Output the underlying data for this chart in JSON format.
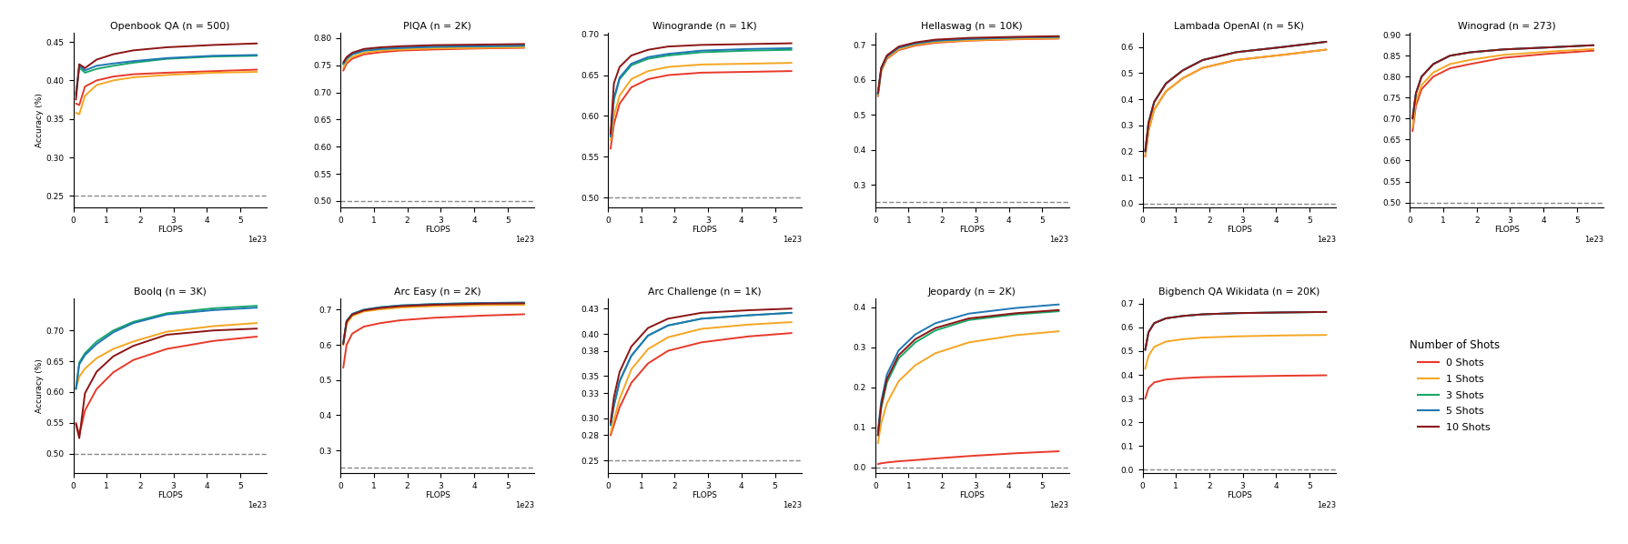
{
  "colors": {
    "0": "#e8392a",
    "1": "#f5a623",
    "3": "#17a868",
    "5": "#1f77b4",
    "10": "#8b1515"
  },
  "shot_labels": [
    "0 Shots",
    "1 Shots",
    "3 Shots",
    "5 Shots",
    "10 Shots"
  ],
  "shot_keys": [
    "0",
    "1",
    "3",
    "5",
    "10"
  ],
  "flops": [
    8e+21,
    1.8e+22,
    3.5e+22,
    7e+22,
    1.2e+23,
    1.8e+23,
    2.8e+23,
    4.2e+23,
    5.5e+23
  ],
  "subplots": [
    {
      "title": "Openbook QA (n = 500)",
      "baseline": 0.25,
      "ylim": [
        0.235,
        0.462
      ],
      "yticks": [
        0.25,
        0.3,
        0.35,
        0.4,
        0.45
      ],
      "ylabel": true,
      "row": 0,
      "col": 0,
      "data": {
        "0": [
          0.37,
          0.368,
          0.392,
          0.4,
          0.405,
          0.408,
          0.41,
          0.412,
          0.414
        ],
        "1": [
          0.358,
          0.356,
          0.38,
          0.394,
          0.4,
          0.404,
          0.407,
          0.41,
          0.411
        ],
        "3": [
          0.383,
          0.417,
          0.41,
          0.415,
          0.419,
          0.423,
          0.428,
          0.431,
          0.432
        ],
        "5": [
          0.381,
          0.42,
          0.413,
          0.419,
          0.422,
          0.425,
          0.429,
          0.432,
          0.433
        ],
        "10": [
          0.375,
          0.421,
          0.416,
          0.427,
          0.434,
          0.439,
          0.443,
          0.446,
          0.448
        ]
      }
    },
    {
      "title": "PIQA (n = 2K)",
      "baseline": 0.5,
      "ylim": [
        0.488,
        0.81
      ],
      "yticks": [
        0.5,
        0.55,
        0.6,
        0.65,
        0.7,
        0.75,
        0.8
      ],
      "ylabel": false,
      "row": 0,
      "col": 1,
      "data": {
        "0": [
          0.74,
          0.753,
          0.762,
          0.77,
          0.774,
          0.777,
          0.779,
          0.781,
          0.782
        ],
        "1": [
          0.745,
          0.757,
          0.765,
          0.773,
          0.777,
          0.779,
          0.781,
          0.782,
          0.783
        ],
        "3": [
          0.752,
          0.762,
          0.77,
          0.777,
          0.78,
          0.782,
          0.784,
          0.785,
          0.786
        ],
        "5": [
          0.752,
          0.762,
          0.77,
          0.777,
          0.78,
          0.782,
          0.784,
          0.785,
          0.786
        ],
        "10": [
          0.755,
          0.765,
          0.773,
          0.78,
          0.783,
          0.785,
          0.787,
          0.788,
          0.789
        ]
      }
    },
    {
      "title": "Winogrande (n = 1K)",
      "baseline": 0.5,
      "ylim": [
        0.488,
        0.702
      ],
      "yticks": [
        0.5,
        0.55,
        0.6,
        0.65,
        0.7
      ],
      "ylabel": false,
      "row": 0,
      "col": 2,
      "data": {
        "0": [
          0.56,
          0.59,
          0.615,
          0.635,
          0.645,
          0.65,
          0.653,
          0.654,
          0.655
        ],
        "1": [
          0.57,
          0.6,
          0.625,
          0.645,
          0.655,
          0.66,
          0.663,
          0.664,
          0.665
        ],
        "3": [
          0.575,
          0.62,
          0.645,
          0.662,
          0.67,
          0.674,
          0.678,
          0.68,
          0.681
        ],
        "5": [
          0.575,
          0.622,
          0.647,
          0.664,
          0.672,
          0.676,
          0.68,
          0.682,
          0.683
        ],
        "10": [
          0.578,
          0.64,
          0.66,
          0.674,
          0.681,
          0.685,
          0.687,
          0.688,
          0.689
        ]
      }
    },
    {
      "title": "Hellaswag (n = 10K)",
      "baseline": 0.25,
      "ylim": [
        0.235,
        0.735
      ],
      "yticks": [
        0.3,
        0.4,
        0.5,
        0.6,
        0.7
      ],
      "ylabel": false,
      "row": 0,
      "col": 3,
      "data": {
        "0": [
          0.553,
          0.625,
          0.66,
          0.685,
          0.698,
          0.706,
          0.712,
          0.716,
          0.718
        ],
        "1": [
          0.556,
          0.627,
          0.662,
          0.687,
          0.7,
          0.708,
          0.713,
          0.717,
          0.719
        ],
        "3": [
          0.56,
          0.632,
          0.667,
          0.692,
          0.704,
          0.712,
          0.717,
          0.721,
          0.723
        ],
        "5": [
          0.56,
          0.632,
          0.667,
          0.692,
          0.704,
          0.712,
          0.717,
          0.721,
          0.723
        ],
        "10": [
          0.562,
          0.635,
          0.67,
          0.695,
          0.707,
          0.715,
          0.72,
          0.723,
          0.725
        ]
      }
    },
    {
      "title": "Lambada OpenAI (n = 5K)",
      "baseline": 0.0,
      "ylim": [
        -0.015,
        0.655
      ],
      "yticks": [
        0.0,
        0.1,
        0.2,
        0.3,
        0.4,
        0.5,
        0.6
      ],
      "ylabel": false,
      "row": 0,
      "col": 4,
      "data": {
        "0": [
          0.18,
          0.28,
          0.36,
          0.43,
          0.48,
          0.52,
          0.55,
          0.57,
          0.59
        ],
        "1": [
          0.18,
          0.28,
          0.36,
          0.43,
          0.48,
          0.52,
          0.55,
          0.57,
          0.59
        ],
        "3": [
          0.2,
          0.31,
          0.39,
          0.46,
          0.51,
          0.55,
          0.58,
          0.6,
          0.62
        ],
        "5": [
          0.2,
          0.31,
          0.39,
          0.46,
          0.51,
          0.55,
          0.58,
          0.6,
          0.62
        ],
        "10": [
          0.2,
          0.31,
          0.39,
          0.46,
          0.51,
          0.55,
          0.58,
          0.6,
          0.62
        ]
      }
    },
    {
      "title": "Winograd (n = 273)",
      "baseline": 0.5,
      "ylim": [
        0.488,
        0.905
      ],
      "yticks": [
        0.5,
        0.55,
        0.6,
        0.65,
        0.7,
        0.75,
        0.8,
        0.85,
        0.9
      ],
      "ylabel": false,
      "row": 0,
      "col": 5,
      "data": {
        "0": [
          0.67,
          0.73,
          0.77,
          0.8,
          0.82,
          0.83,
          0.845,
          0.855,
          0.862
        ],
        "1": [
          0.68,
          0.74,
          0.78,
          0.81,
          0.83,
          0.84,
          0.852,
          0.86,
          0.866
        ],
        "3": [
          0.7,
          0.76,
          0.8,
          0.83,
          0.85,
          0.858,
          0.865,
          0.87,
          0.875
        ],
        "5": [
          0.7,
          0.76,
          0.8,
          0.83,
          0.85,
          0.858,
          0.865,
          0.87,
          0.875
        ],
        "10": [
          0.7,
          0.76,
          0.8,
          0.83,
          0.85,
          0.858,
          0.865,
          0.87,
          0.875
        ]
      }
    },
    {
      "title": "Boolq (n = 3K)",
      "baseline": 0.5,
      "ylim": [
        0.468,
        0.752
      ],
      "yticks": [
        0.5,
        0.55,
        0.6,
        0.65,
        0.7
      ],
      "ylabel": true,
      "row": 1,
      "col": 0,
      "data": {
        "0": [
          0.55,
          0.53,
          0.57,
          0.605,
          0.632,
          0.652,
          0.67,
          0.683,
          0.69
        ],
        "1": [
          0.605,
          0.625,
          0.638,
          0.655,
          0.67,
          0.682,
          0.698,
          0.707,
          0.712
        ],
        "3": [
          0.605,
          0.648,
          0.663,
          0.682,
          0.7,
          0.714,
          0.728,
          0.736,
          0.74
        ],
        "5": [
          0.605,
          0.645,
          0.66,
          0.678,
          0.697,
          0.712,
          0.726,
          0.733,
          0.737
        ],
        "10": [
          0.548,
          0.525,
          0.598,
          0.633,
          0.658,
          0.675,
          0.693,
          0.7,
          0.703
        ]
      }
    },
    {
      "title": "Arc Easy (n = 2K)",
      "baseline": 0.25,
      "ylim": [
        0.235,
        0.732
      ],
      "yticks": [
        0.3,
        0.4,
        0.5,
        0.6,
        0.7
      ],
      "ylabel": false,
      "row": 1,
      "col": 1,
      "data": {
        "0": [
          0.535,
          0.6,
          0.632,
          0.652,
          0.662,
          0.67,
          0.677,
          0.683,
          0.687
        ],
        "1": [
          0.6,
          0.66,
          0.682,
          0.695,
          0.701,
          0.706,
          0.71,
          0.713,
          0.714
        ],
        "3": [
          0.605,
          0.668,
          0.688,
          0.7,
          0.707,
          0.712,
          0.716,
          0.719,
          0.72
        ],
        "5": [
          0.605,
          0.668,
          0.688,
          0.7,
          0.707,
          0.712,
          0.716,
          0.719,
          0.72
        ],
        "10": [
          0.602,
          0.666,
          0.686,
          0.698,
          0.705,
          0.71,
          0.714,
          0.717,
          0.718
        ]
      }
    },
    {
      "title": "Arc Challenge (n = 1K)",
      "baseline": 0.25,
      "ylim": [
        0.235,
        0.442
      ],
      "yticks": [
        0.25,
        0.28,
        0.3,
        0.33,
        0.35,
        0.38,
        0.4,
        0.43
      ],
      "ylabel": false,
      "row": 1,
      "col": 2,
      "data": {
        "0": [
          0.28,
          0.292,
          0.313,
          0.342,
          0.365,
          0.38,
          0.39,
          0.397,
          0.401
        ],
        "1": [
          0.283,
          0.298,
          0.323,
          0.358,
          0.382,
          0.396,
          0.406,
          0.411,
          0.414
        ],
        "3": [
          0.292,
          0.315,
          0.344,
          0.374,
          0.398,
          0.41,
          0.418,
          0.422,
          0.425
        ],
        "5": [
          0.292,
          0.315,
          0.344,
          0.374,
          0.398,
          0.41,
          0.418,
          0.422,
          0.425
        ],
        "10": [
          0.295,
          0.325,
          0.355,
          0.385,
          0.407,
          0.418,
          0.425,
          0.428,
          0.43
        ]
      }
    },
    {
      "title": "Jeopardy (n = 2K)",
      "baseline": 0.0,
      "ylim": [
        -0.015,
        0.422
      ],
      "yticks": [
        0.0,
        0.1,
        0.2,
        0.3,
        0.4
      ],
      "ylabel": false,
      "row": 1,
      "col": 3,
      "data": {
        "0": [
          0.008,
          0.01,
          0.012,
          0.015,
          0.018,
          0.022,
          0.028,
          0.035,
          0.04
        ],
        "1": [
          0.06,
          0.11,
          0.16,
          0.215,
          0.255,
          0.285,
          0.312,
          0.33,
          0.34
        ],
        "3": [
          0.08,
          0.148,
          0.212,
          0.272,
          0.312,
          0.342,
          0.368,
          0.382,
          0.39
        ],
        "5": [
          0.09,
          0.165,
          0.232,
          0.292,
          0.332,
          0.36,
          0.384,
          0.398,
          0.407
        ],
        "10": [
          0.08,
          0.155,
          0.22,
          0.28,
          0.32,
          0.348,
          0.372,
          0.385,
          0.393
        ]
      }
    },
    {
      "title": "Bigbench QA Wikidata (n = 20K)",
      "baseline": 0.0,
      "ylim": [
        -0.015,
        0.722
      ],
      "yticks": [
        0.0,
        0.1,
        0.2,
        0.3,
        0.4,
        0.5,
        0.6,
        0.7
      ],
      "ylabel": false,
      "row": 1,
      "col": 4,
      "data": {
        "0": [
          0.3,
          0.345,
          0.368,
          0.38,
          0.386,
          0.39,
          0.393,
          0.396,
          0.398
        ],
        "1": [
          0.425,
          0.48,
          0.518,
          0.54,
          0.55,
          0.557,
          0.562,
          0.566,
          0.568
        ],
        "3": [
          0.505,
          0.58,
          0.618,
          0.638,
          0.648,
          0.655,
          0.66,
          0.663,
          0.665
        ],
        "5": [
          0.505,
          0.58,
          0.618,
          0.638,
          0.648,
          0.655,
          0.66,
          0.663,
          0.665
        ],
        "10": [
          0.505,
          0.58,
          0.618,
          0.638,
          0.648,
          0.655,
          0.66,
          0.663,
          0.665
        ]
      }
    }
  ]
}
